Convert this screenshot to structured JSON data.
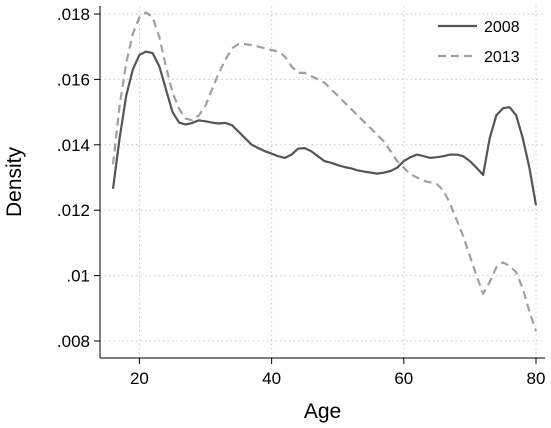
{
  "chart_data": {
    "type": "line",
    "title": "",
    "xlabel": "Age",
    "ylabel": "Density",
    "xlim": [
      16,
      80
    ],
    "ylim": [
      0.008,
      0.018
    ],
    "grid": true,
    "legend_position": "top-right",
    "x_ticks": [
      {
        "value": 20,
        "label": "20"
      },
      {
        "value": 40,
        "label": "40"
      },
      {
        "value": 60,
        "label": "60"
      },
      {
        "value": 80,
        "label": "80"
      }
    ],
    "y_ticks": [
      {
        "value": 0.008,
        "label": ".008"
      },
      {
        "value": 0.01,
        "label": ".01"
      },
      {
        "value": 0.012,
        "label": ".012"
      },
      {
        "value": 0.014,
        "label": ".014"
      },
      {
        "value": 0.016,
        "label": ".016"
      },
      {
        "value": 0.018,
        "label": ".018"
      }
    ],
    "series": [
      {
        "name": "2008",
        "color": "#555555",
        "dash": "solid",
        "points": [
          [
            16,
            0.01265
          ],
          [
            17,
            0.0142
          ],
          [
            18,
            0.0155
          ],
          [
            19,
            0.0163
          ],
          [
            20,
            0.01675
          ],
          [
            21,
            0.01685
          ],
          [
            22,
            0.0168
          ],
          [
            23,
            0.0164
          ],
          [
            24,
            0.0157
          ],
          [
            25,
            0.015
          ],
          [
            26,
            0.01468
          ],
          [
            27,
            0.01462
          ],
          [
            28,
            0.01467
          ],
          [
            29,
            0.01475
          ],
          [
            30,
            0.01472
          ],
          [
            31,
            0.01468
          ],
          [
            32,
            0.01465
          ],
          [
            33,
            0.01467
          ],
          [
            34,
            0.0146
          ],
          [
            35,
            0.0144
          ],
          [
            36,
            0.0142
          ],
          [
            37,
            0.014
          ],
          [
            38,
            0.0139
          ],
          [
            39,
            0.0138
          ],
          [
            40,
            0.01373
          ],
          [
            41,
            0.01365
          ],
          [
            42,
            0.0136
          ],
          [
            43,
            0.0137
          ],
          [
            44,
            0.01388
          ],
          [
            45,
            0.0139
          ],
          [
            46,
            0.0138
          ],
          [
            47,
            0.01365
          ],
          [
            48,
            0.0135
          ],
          [
            49,
            0.01345
          ],
          [
            50,
            0.01338
          ],
          [
            51,
            0.01332
          ],
          [
            52,
            0.01328
          ],
          [
            53,
            0.01322
          ],
          [
            54,
            0.01318
          ],
          [
            55,
            0.01315
          ],
          [
            56,
            0.01312
          ],
          [
            57,
            0.01315
          ],
          [
            58,
            0.0132
          ],
          [
            59,
            0.0133
          ],
          [
            60,
            0.0135
          ],
          [
            61,
            0.01362
          ],
          [
            62,
            0.0137
          ],
          [
            63,
            0.01365
          ],
          [
            64,
            0.0136
          ],
          [
            65,
            0.01362
          ],
          [
            66,
            0.01365
          ],
          [
            67,
            0.0137
          ],
          [
            68,
            0.0137
          ],
          [
            69,
            0.01365
          ],
          [
            70,
            0.0135
          ],
          [
            71,
            0.0133
          ],
          [
            72,
            0.01308
          ],
          [
            73,
            0.0142
          ],
          [
            74,
            0.0149
          ],
          [
            75,
            0.01512
          ],
          [
            76,
            0.01515
          ],
          [
            77,
            0.0149
          ],
          [
            78,
            0.0142
          ],
          [
            79,
            0.0133
          ],
          [
            80,
            0.01215
          ]
        ]
      },
      {
        "name": "2013",
        "color": "#a0a0a0",
        "dash": "dashed",
        "points": [
          [
            16,
            0.0134
          ],
          [
            17,
            0.0152
          ],
          [
            18,
            0.0165
          ],
          [
            19,
            0.0174
          ],
          [
            20,
            0.0179
          ],
          [
            21,
            0.01805
          ],
          [
            22,
            0.0179
          ],
          [
            23,
            0.0173
          ],
          [
            24,
            0.0164
          ],
          [
            25,
            0.0156
          ],
          [
            26,
            0.0151
          ],
          [
            27,
            0.0148
          ],
          [
            28,
            0.01475
          ],
          [
            29,
            0.0149
          ],
          [
            30,
            0.0152
          ],
          [
            31,
            0.0157
          ],
          [
            32,
            0.0162
          ],
          [
            33,
            0.0166
          ],
          [
            34,
            0.01695
          ],
          [
            35,
            0.01708
          ],
          [
            36,
            0.01708
          ],
          [
            37,
            0.01705
          ],
          [
            38,
            0.017
          ],
          [
            39,
            0.01695
          ],
          [
            40,
            0.0169
          ],
          [
            41,
            0.01685
          ],
          [
            42,
            0.0167
          ],
          [
            43,
            0.0164
          ],
          [
            44,
            0.0162
          ],
          [
            45,
            0.0162
          ],
          [
            46,
            0.0161
          ],
          [
            47,
            0.016
          ],
          [
            48,
            0.0159
          ],
          [
            49,
            0.0157
          ],
          [
            50,
            0.0155
          ],
          [
            51,
            0.0153
          ],
          [
            52,
            0.0151
          ],
          [
            53,
            0.0149
          ],
          [
            54,
            0.0147
          ],
          [
            55,
            0.0145
          ],
          [
            56,
            0.0143
          ],
          [
            57,
            0.0141
          ],
          [
            58,
            0.0138
          ],
          [
            59,
            0.0135
          ],
          [
            60,
            0.0133
          ],
          [
            61,
            0.0131
          ],
          [
            62,
            0.013
          ],
          [
            63,
            0.0129
          ],
          [
            64,
            0.01285
          ],
          [
            65,
            0.0128
          ],
          [
            66,
            0.0126
          ],
          [
            67,
            0.0122
          ],
          [
            68,
            0.0117
          ],
          [
            69,
            0.0112
          ],
          [
            70,
            0.0106
          ],
          [
            71,
            0.01
          ],
          [
            72,
            0.00945
          ],
          [
            73,
            0.0098
          ],
          [
            74,
            0.01025
          ],
          [
            75,
            0.0104
          ],
          [
            76,
            0.0103
          ],
          [
            77,
            0.0101
          ],
          [
            78,
            0.0096
          ],
          [
            79,
            0.0089
          ],
          [
            80,
            0.0083
          ]
        ]
      }
    ]
  }
}
